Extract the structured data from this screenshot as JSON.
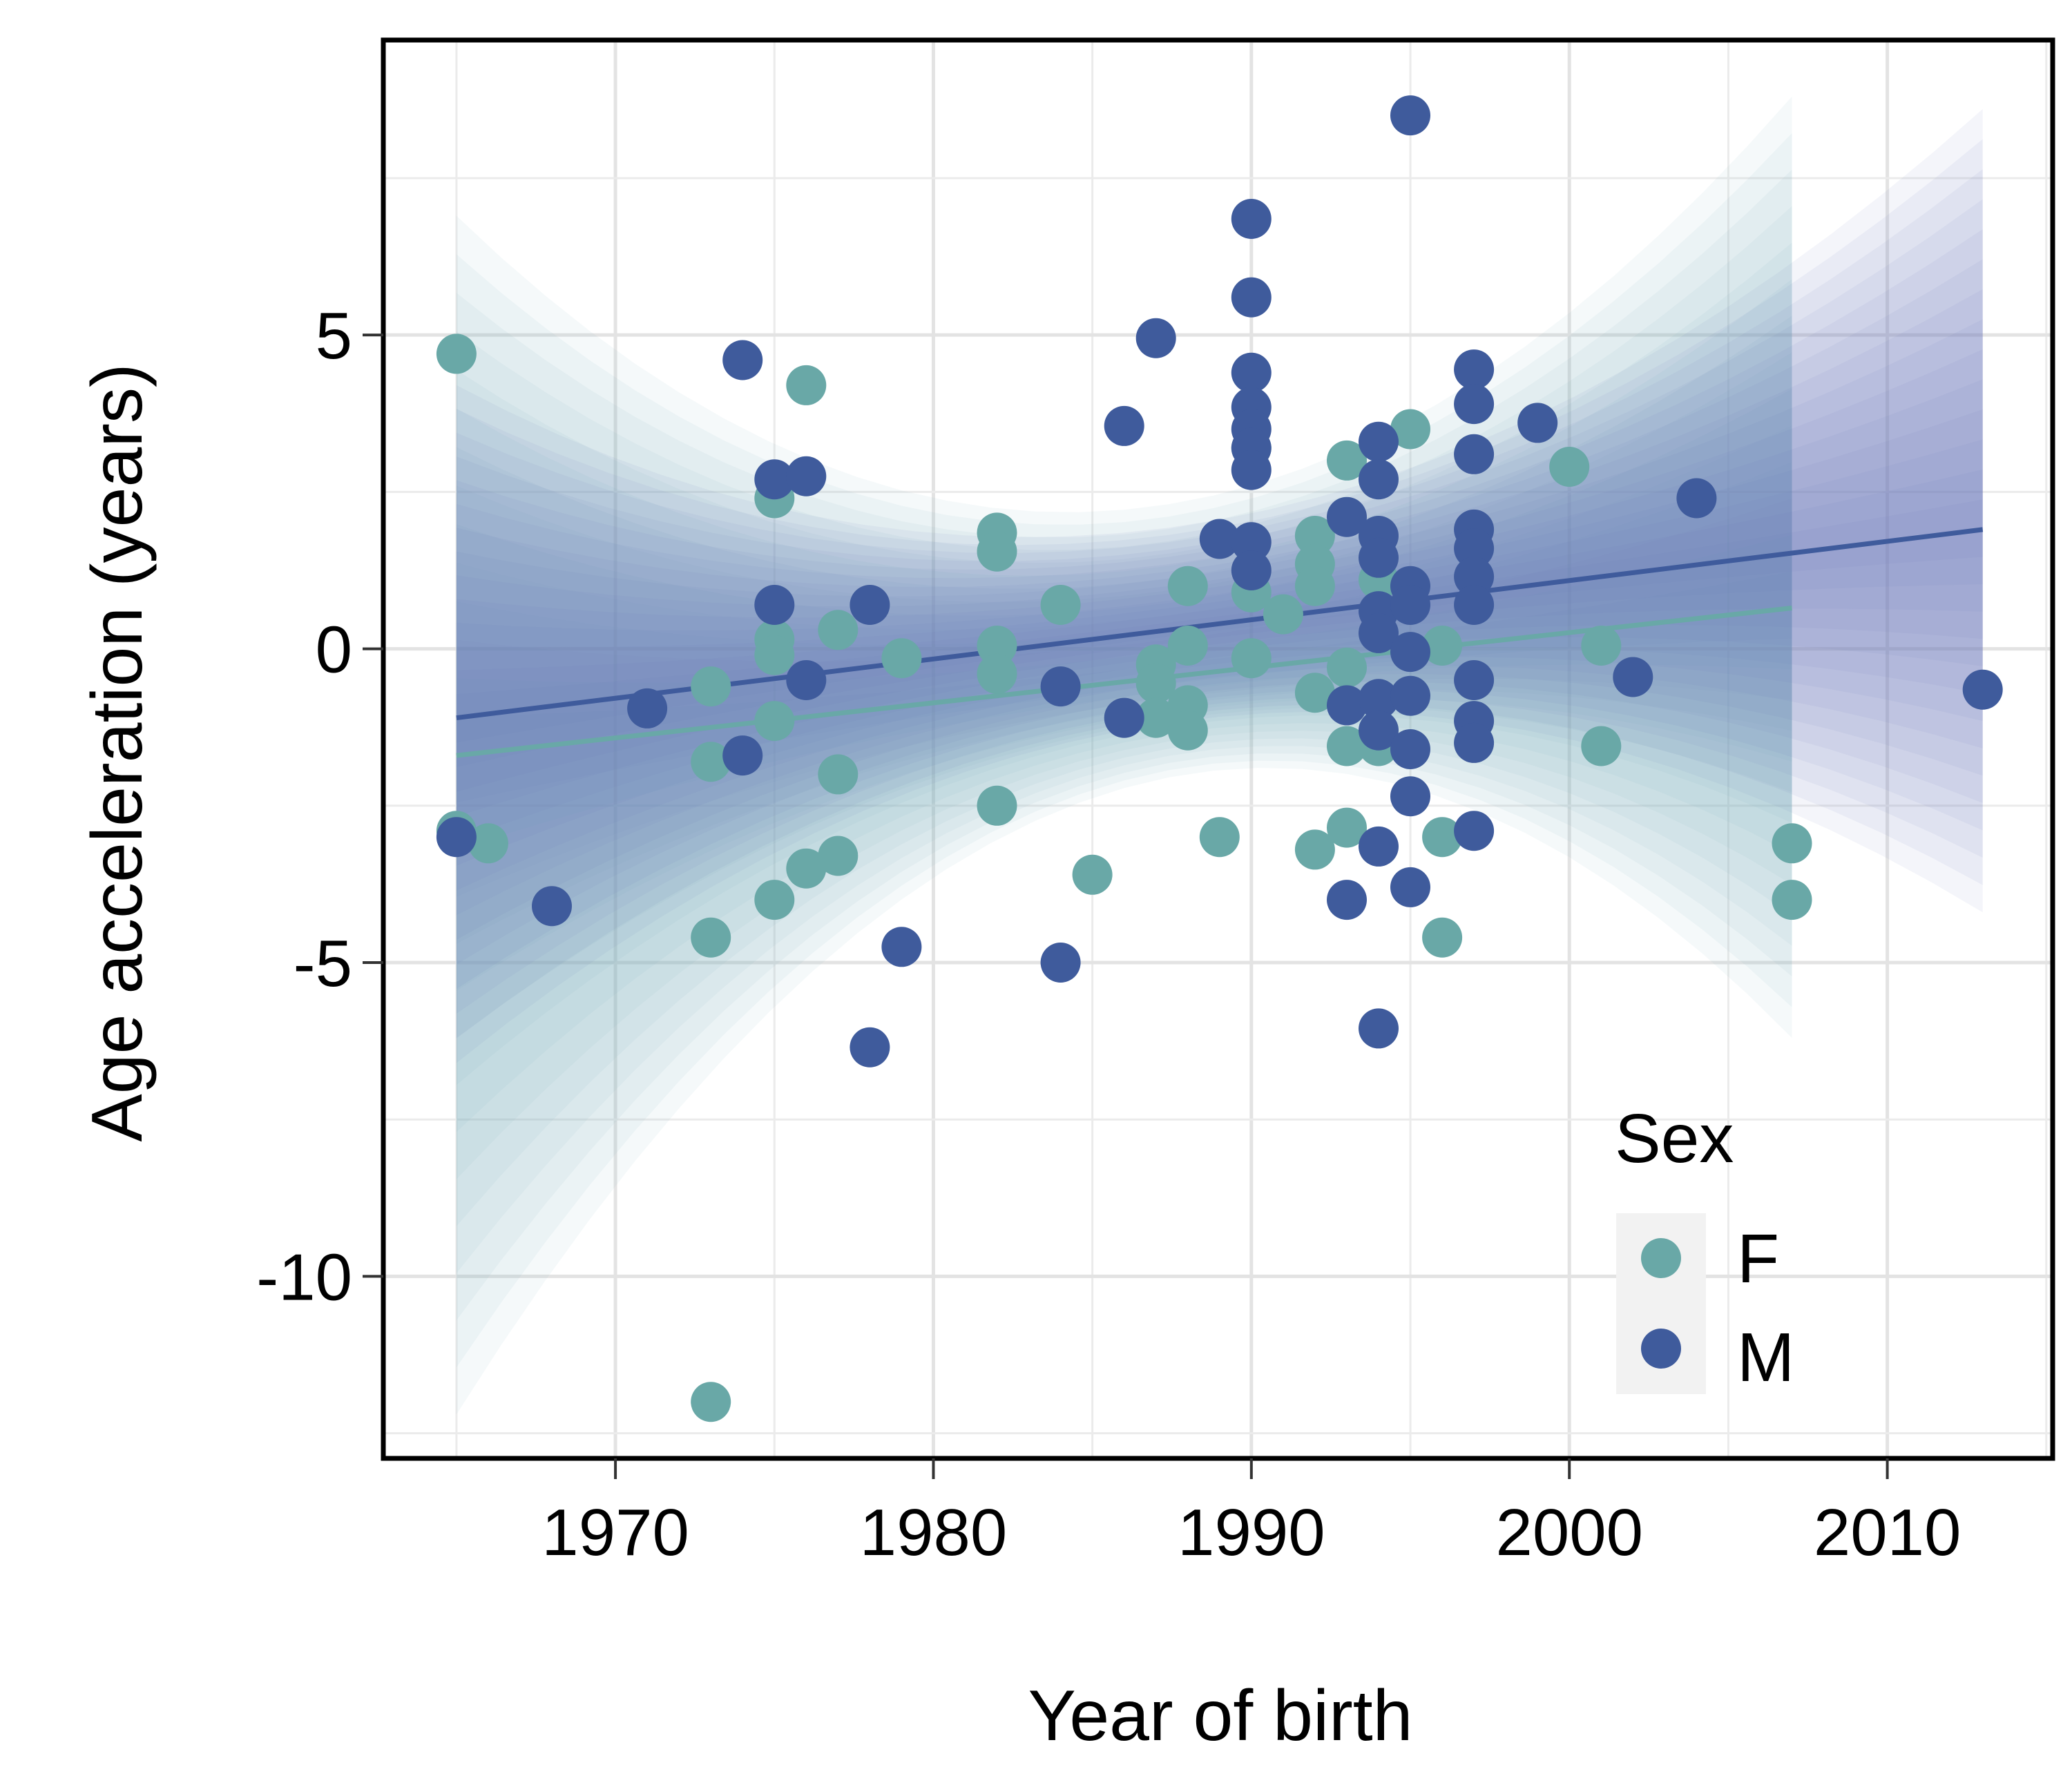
{
  "chart_data": {
    "type": "scatter",
    "title": "",
    "xlabel": "Year of birth",
    "ylabel": "Age acceleration (years)",
    "xlim": [
      1962.7,
      2015.2
    ],
    "ylim": [
      -12.9,
      9.7
    ],
    "xticks": [
      1970,
      1980,
      1990,
      2000,
      2010
    ],
    "xtick_labels": [
      "1970",
      "1980",
      "1990",
      "2000",
      "2010"
    ],
    "yticks": [
      5,
      0,
      -5,
      -10
    ],
    "ytick_labels": [
      "5",
      "0",
      "-5",
      "-10"
    ],
    "grid": true,
    "legend": {
      "title": "Sex",
      "position": "bottom-right-inside",
      "entries": [
        {
          "label": "F",
          "color": "#69a8a7"
        },
        {
          "label": "M",
          "color": "#3f5b9c"
        }
      ]
    },
    "series": [
      {
        "name": "F",
        "color": "#69a8a7",
        "band_color": "#7fb3bd",
        "fit": {
          "x": [
            1965,
            2007
          ],
          "y": [
            -1.7,
            0.65
          ]
        },
        "band": {
          "x": [
            1965,
            1990,
            2007
          ],
          "upper": [
            6.9,
            2.6,
            8.8
          ],
          "lower": [
            -12.2,
            -1.9,
            -6.2
          ]
        },
        "points": [
          [
            1965,
            4.7
          ],
          [
            1965,
            -2.9
          ],
          [
            1966,
            -3.1
          ],
          [
            1973,
            -0.6
          ],
          [
            1973,
            -1.8
          ],
          [
            1973,
            -4.6
          ],
          [
            1973,
            -12.0
          ],
          [
            1975,
            2.4
          ],
          [
            1975,
            0.15
          ],
          [
            1975,
            -0.1
          ],
          [
            1975,
            -1.15
          ],
          [
            1975,
            -4.0
          ],
          [
            1976,
            4.2
          ],
          [
            1976,
            -3.5
          ],
          [
            1977,
            0.3
          ],
          [
            1977,
            -2.0
          ],
          [
            1977,
            -3.3
          ],
          [
            1979,
            -0.15
          ],
          [
            1982,
            1.85
          ],
          [
            1982,
            1.55
          ],
          [
            1982,
            0.05
          ],
          [
            1982,
            -0.4
          ],
          [
            1982,
            -2.5
          ],
          [
            1984,
            0.7
          ],
          [
            1985,
            -3.6
          ],
          [
            1987,
            -0.25
          ],
          [
            1987,
            -0.55
          ],
          [
            1987,
            -1.1
          ],
          [
            1988,
            1.0
          ],
          [
            1988,
            0.05
          ],
          [
            1988,
            -0.9
          ],
          [
            1988,
            -1.3
          ],
          [
            1989,
            -3.0
          ],
          [
            1990,
            3.2
          ],
          [
            1990,
            0.9
          ],
          [
            1990,
            -0.15
          ],
          [
            1991,
            0.55
          ],
          [
            1992,
            1.8
          ],
          [
            1992,
            1.35
          ],
          [
            1992,
            1.0
          ],
          [
            1992,
            -0.7
          ],
          [
            1992,
            -3.2
          ],
          [
            1993,
            3.0
          ],
          [
            1993,
            -0.3
          ],
          [
            1993,
            -1.55
          ],
          [
            1993,
            -2.85
          ],
          [
            1994,
            1.1
          ],
          [
            1994,
            -1.55
          ],
          [
            1995,
            3.5
          ],
          [
            1996,
            0.05
          ],
          [
            1996,
            -3.0
          ],
          [
            1996,
            -4.6
          ],
          [
            2000,
            2.9
          ],
          [
            2001,
            0.05
          ],
          [
            2001,
            -1.55
          ],
          [
            2007,
            -3.1
          ],
          [
            2007,
            -4.0
          ]
        ]
      },
      {
        "name": "M",
        "color": "#3f5b9c",
        "band_color": "#6c7fb8",
        "fit": {
          "x": [
            1965,
            2013
          ],
          "y": [
            -1.1,
            1.9
          ]
        },
        "band": {
          "x": [
            1965,
            1992,
            2013
          ],
          "upper": [
            4.2,
            2.4,
            8.6
          ],
          "lower": [
            -6.6,
            -1.0,
            -4.2
          ]
        },
        "points": [
          [
            1965,
            -3.0
          ],
          [
            1968,
            -4.1
          ],
          [
            1971,
            -0.95
          ],
          [
            1974,
            4.6
          ],
          [
            1974,
            -1.7
          ],
          [
            1975,
            2.7
          ],
          [
            1975,
            0.7
          ],
          [
            1976,
            2.75
          ],
          [
            1976,
            -0.5
          ],
          [
            1978,
            0.7
          ],
          [
            1978,
            -6.35
          ],
          [
            1979,
            -4.75
          ],
          [
            1984,
            -0.6
          ],
          [
            1984,
            -5.0
          ],
          [
            1986,
            3.55
          ],
          [
            1986,
            -1.1
          ],
          [
            1987,
            4.95
          ],
          [
            1989,
            1.75
          ],
          [
            1990,
            6.85
          ],
          [
            1990,
            5.6
          ],
          [
            1990,
            4.4
          ],
          [
            1990,
            3.85
          ],
          [
            1990,
            3.5
          ],
          [
            1990,
            3.2
          ],
          [
            1990,
            2.85
          ],
          [
            1990,
            1.7
          ],
          [
            1990,
            1.25
          ],
          [
            1993,
            2.1
          ],
          [
            1993,
            -0.9
          ],
          [
            1993,
            -4.0
          ],
          [
            1994,
            3.3
          ],
          [
            1994,
            2.7
          ],
          [
            1994,
            1.8
          ],
          [
            1994,
            1.45
          ],
          [
            1994,
            0.6
          ],
          [
            1994,
            0.25
          ],
          [
            1994,
            -0.8
          ],
          [
            1994,
            -1.3
          ],
          [
            1994,
            -3.15
          ],
          [
            1994,
            -6.05
          ],
          [
            1995,
            8.5
          ],
          [
            1995,
            1.0
          ],
          [
            1995,
            0.7
          ],
          [
            1995,
            -0.05
          ],
          [
            1995,
            -0.75
          ],
          [
            1995,
            -1.6
          ],
          [
            1995,
            -2.35
          ],
          [
            1995,
            -3.8
          ],
          [
            1997,
            4.45
          ],
          [
            1997,
            3.9
          ],
          [
            1997,
            3.1
          ],
          [
            1997,
            1.9
          ],
          [
            1997,
            1.6
          ],
          [
            1997,
            1.15
          ],
          [
            1997,
            0.7
          ],
          [
            1997,
            -0.5
          ],
          [
            1997,
            -1.15
          ],
          [
            1997,
            -1.5
          ],
          [
            1997,
            -2.9
          ],
          [
            1999,
            3.6
          ],
          [
            2002,
            -0.45
          ],
          [
            2004,
            2.4
          ],
          [
            2013,
            -0.65
          ]
        ]
      }
    ]
  }
}
